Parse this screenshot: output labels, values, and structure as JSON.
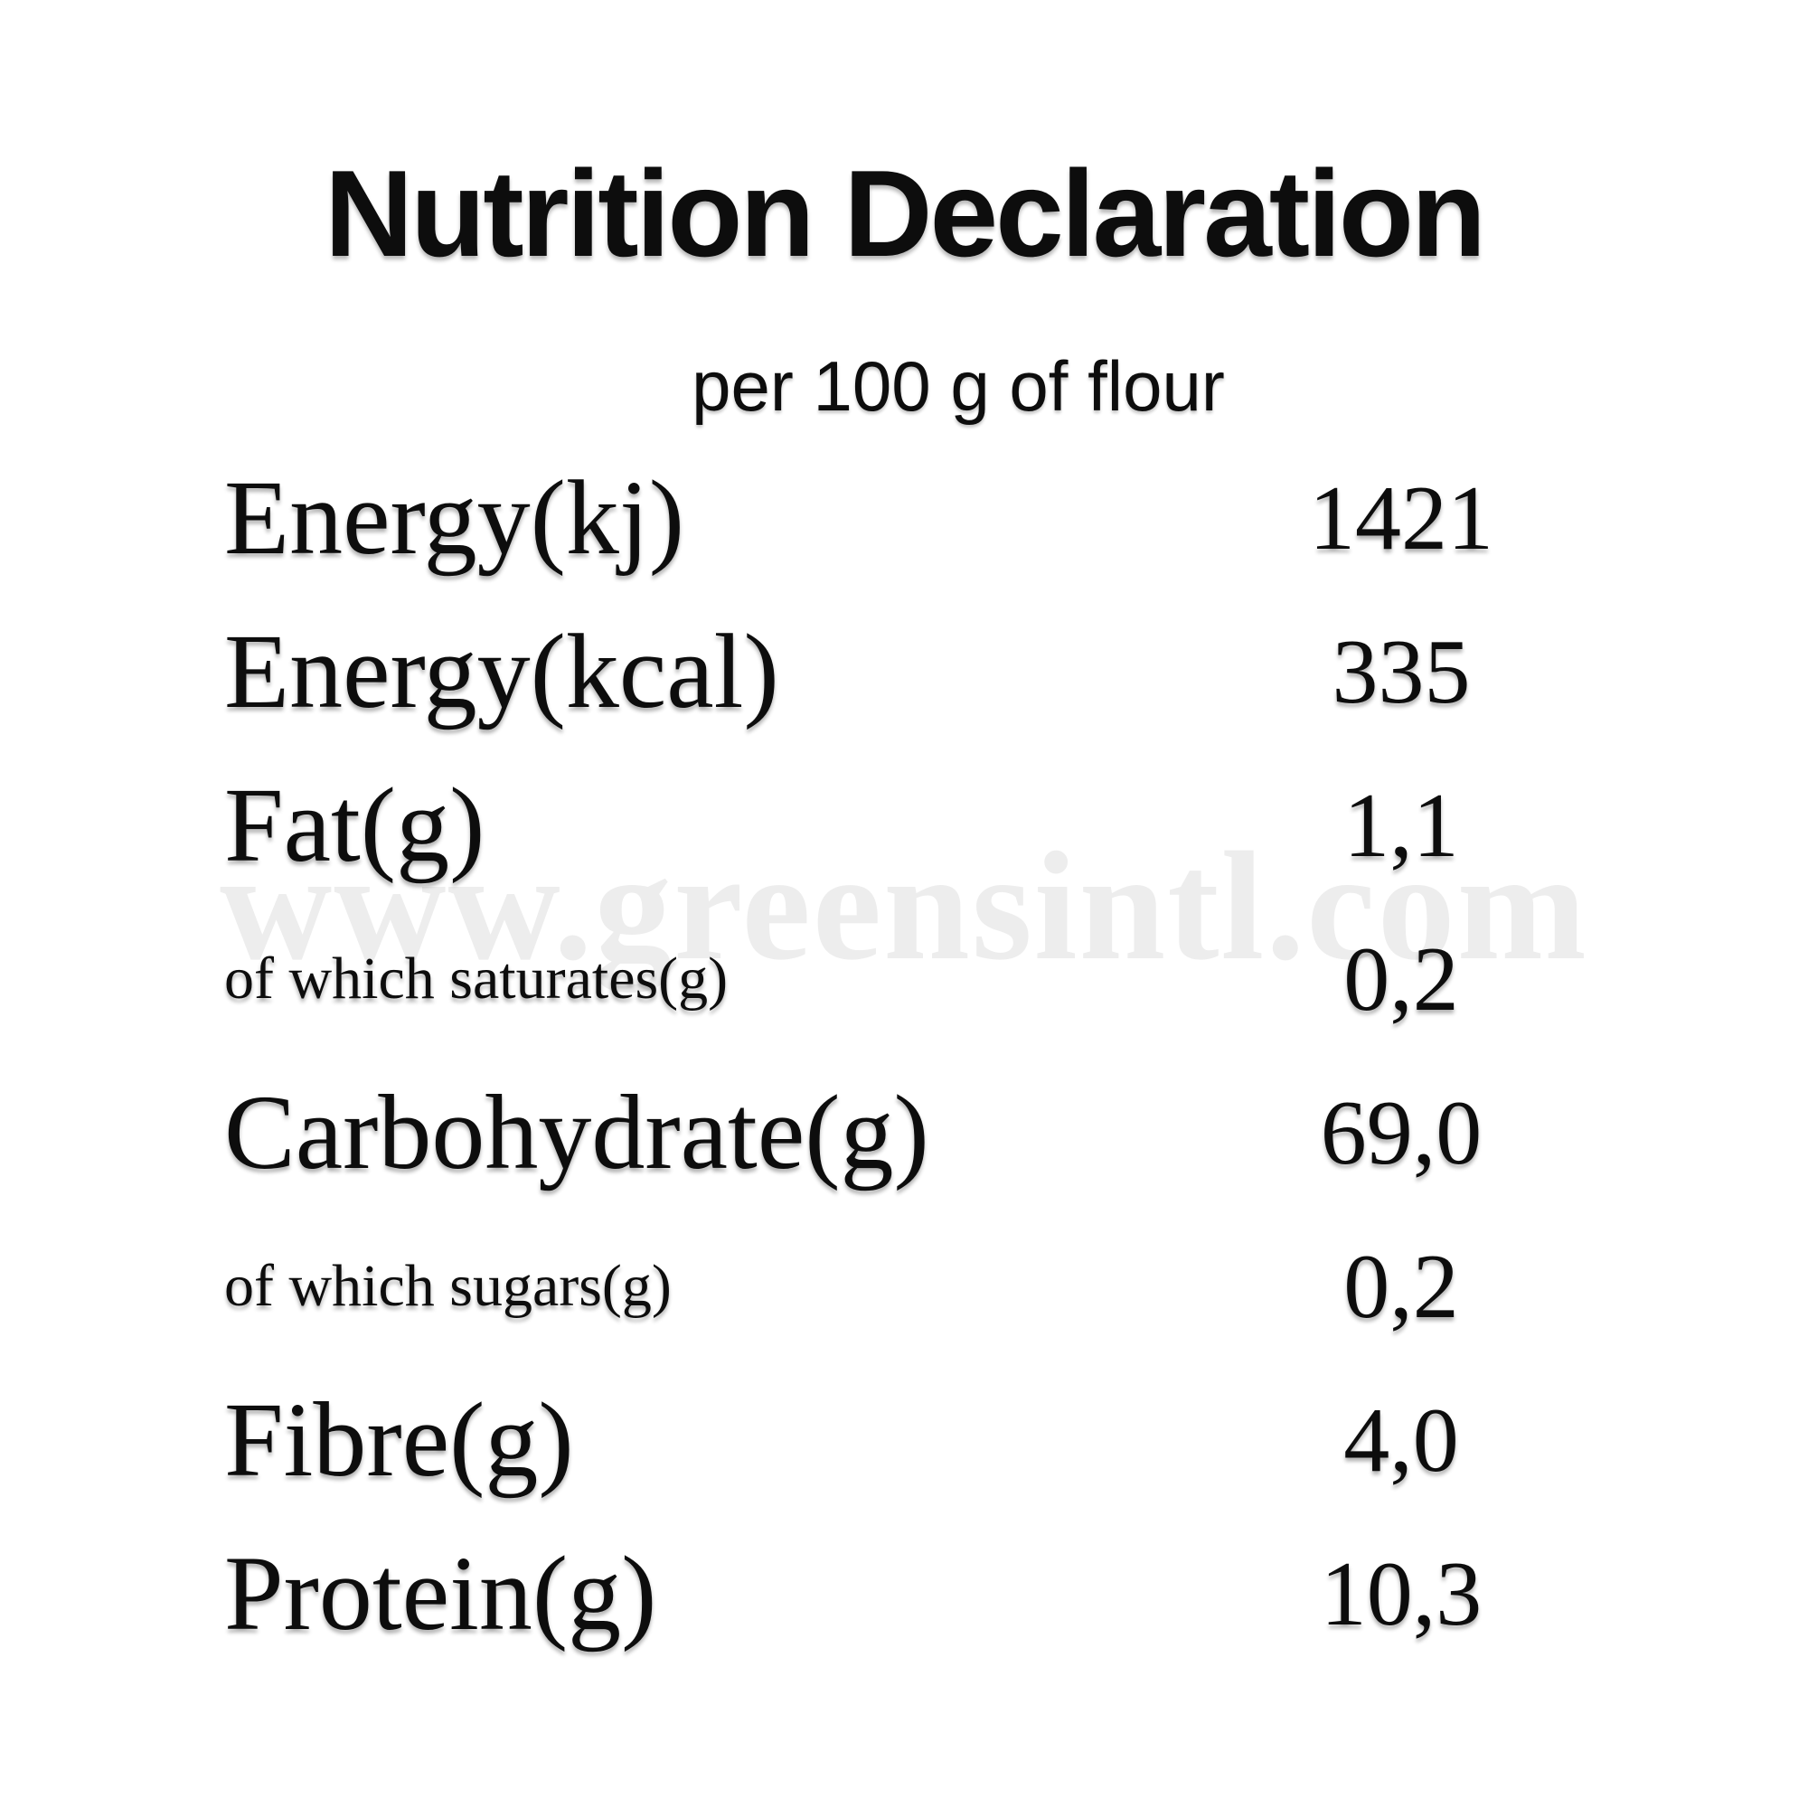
{
  "title": "Nutrition Declaration",
  "subtitle": "per 100 g of flour",
  "watermark": "www.greensintl.com",
  "colors": {
    "background": "#ffffff",
    "text": "#0d0d0d",
    "watermark": "#ededed"
  },
  "table": {
    "rows": [
      {
        "label": "Energy(kj)",
        "value": "1421",
        "emphasis": "large"
      },
      {
        "label": "Energy(kcal)",
        "value": "335",
        "emphasis": "large"
      },
      {
        "label": "Fat(g)",
        "value": "1,1",
        "emphasis": "large"
      },
      {
        "label": "of which saturates(g)",
        "value": "0,2",
        "emphasis": "small"
      },
      {
        "label": "Carbohydrate(g)",
        "value": "69,0",
        "emphasis": "large"
      },
      {
        "label": "of which sugars(g)",
        "value": "0,2",
        "emphasis": "small"
      },
      {
        "label": "Fibre(g)",
        "value": "4,0",
        "emphasis": "large"
      },
      {
        "label": "Protein(g)",
        "value": "10,3",
        "emphasis": "large"
      }
    ]
  }
}
